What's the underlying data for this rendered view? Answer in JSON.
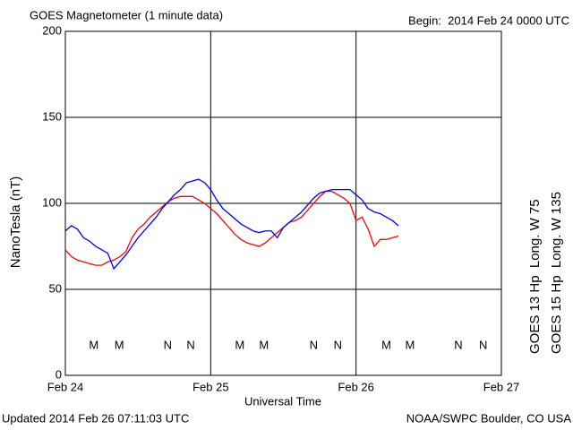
{
  "chart_data": {
    "type": "line",
    "title": "GOES Magnetometer (1 minute data)",
    "subtitle": "Begin:  2014 Feb 24 0000 UTC",
    "ylabel": "NanoTesla (nT)",
    "xlabel": "Universal Time",
    "footer_left": "Updated 2014 Feb 26 07:11:03 UTC",
    "footer_right": "NOAA/SWPC Boulder, CO USA",
    "xlim": [
      0,
      72
    ],
    "xticks": [
      {
        "value": 0,
        "label": "Feb 24"
      },
      {
        "value": 24,
        "label": "Feb 25"
      },
      {
        "value": 48,
        "label": "Feb 26"
      },
      {
        "value": 72,
        "label": "Feb 27"
      }
    ],
    "ylim": [
      0,
      200
    ],
    "yticks": [
      0,
      50,
      100,
      150,
      200
    ],
    "grid": true,
    "x": [
      0,
      1,
      2,
      3,
      4,
      5,
      6,
      7,
      8,
      9,
      10,
      11,
      12,
      13,
      14,
      15,
      16,
      17,
      18,
      19,
      20,
      21,
      22,
      23,
      24,
      25,
      26,
      27,
      28,
      29,
      30,
      31,
      32,
      33,
      34,
      35,
      36,
      37,
      38,
      39,
      40,
      41,
      42,
      43,
      44,
      45,
      46,
      47,
      48,
      49,
      50,
      51,
      52,
      53,
      54,
      55
    ],
    "series": [
      {
        "name": "GOES 13 Hp  Long. W 75",
        "color": "#ff0000",
        "values": [
          73,
          69,
          67,
          66,
          65,
          64,
          64,
          66,
          67,
          69,
          72,
          80,
          85,
          88,
          92,
          95,
          98,
          101,
          103,
          104,
          104,
          104,
          102,
          100,
          97,
          94,
          90,
          86,
          82,
          79,
          77,
          76,
          75,
          77,
          80,
          83,
          86,
          89,
          90,
          92,
          96,
          100,
          104,
          107,
          107,
          105,
          103,
          100,
          90,
          92,
          85,
          75,
          79,
          79,
          80,
          81
        ]
      },
      {
        "name": "GOES 15 Hp  Long. W 135",
        "color": "#0000ff",
        "values": [
          84,
          87,
          85,
          80,
          78,
          75,
          73,
          71,
          62,
          66,
          70,
          75,
          80,
          84,
          88,
          92,
          97,
          101,
          105,
          108,
          112,
          113,
          114,
          112,
          108,
          102,
          97,
          94,
          91,
          88,
          86,
          84,
          83,
          84,
          84,
          80,
          86,
          89,
          92,
          95,
          99,
          103,
          106,
          107,
          108,
          108,
          108,
          108,
          105,
          102,
          97,
          95,
          94,
          92,
          90,
          87
        ]
      }
    ],
    "annotations": [
      {
        "text": "M",
        "x": 4.7,
        "color": "#ff0000"
      },
      {
        "text": "M",
        "x": 8.9,
        "color": "#0000ff"
      },
      {
        "text": "N",
        "x": 16.9,
        "color": "#ff0000"
      },
      {
        "text": "N",
        "x": 20.7,
        "color": "#0000ff"
      },
      {
        "text": "M",
        "x": 28.8,
        "color": "#ff0000"
      },
      {
        "text": "M",
        "x": 32.8,
        "color": "#0000ff"
      },
      {
        "text": "N",
        "x": 41,
        "color": "#ff0000"
      },
      {
        "text": "N",
        "x": 45,
        "color": "#0000ff"
      },
      {
        "text": "M",
        "x": 53,
        "color": "#ff0000"
      },
      {
        "text": "M",
        "x": 56.9,
        "color": "#0000ff"
      },
      {
        "text": "N",
        "x": 64.9,
        "color": "#ff0000"
      },
      {
        "text": "N",
        "x": 69,
        "color": "#0000ff"
      }
    ]
  }
}
